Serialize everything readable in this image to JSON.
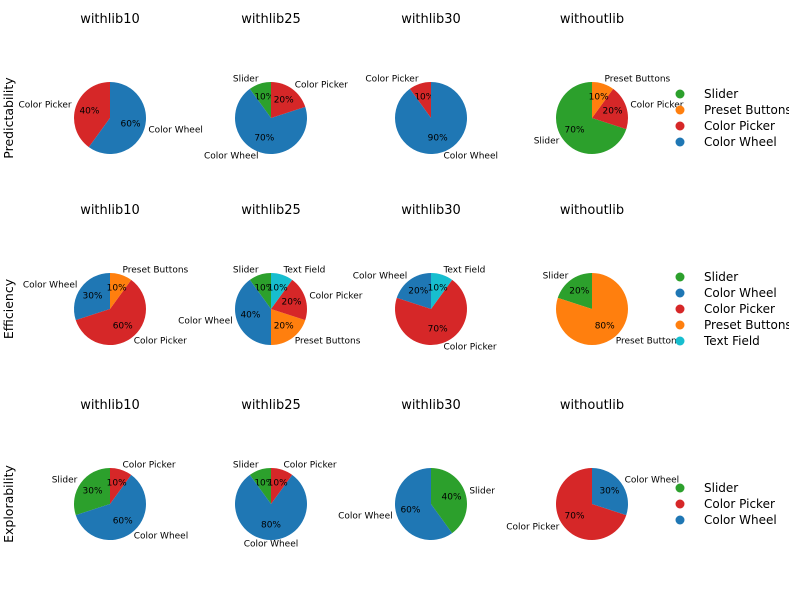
{
  "colors": {
    "Slider": "#2ca02c",
    "Preset Buttons": "#ff7f0e",
    "Color Picker": "#d62728",
    "Color Wheel": "#1f77b4",
    "Text Field": "#17becf"
  },
  "rows": [
    {
      "label": "Predictability",
      "legend": [
        "Slider",
        "Preset Buttons",
        "Color Picker",
        "Color Wheel"
      ]
    },
    {
      "label": "Efficiency",
      "legend": [
        "Slider",
        "Color Wheel",
        "Color Picker",
        "Preset Buttons",
        "Text Field"
      ]
    },
    {
      "label": "Explorability",
      "legend": [
        "Slider",
        "Color Picker",
        "Color Wheel"
      ]
    }
  ],
  "chart_data": [
    {
      "type": "pie",
      "row": 0,
      "col": 0,
      "title": "withlib10",
      "labels": [
        "Color Picker",
        "Color Wheel"
      ],
      "values": [
        40,
        60
      ],
      "pct_labels": [
        "40%",
        "60%"
      ]
    },
    {
      "type": "pie",
      "row": 0,
      "col": 1,
      "title": "withlib25",
      "labels": [
        "Slider",
        "Color Wheel",
        "Color Picker"
      ],
      "values": [
        10,
        70,
        20
      ],
      "pct_labels": [
        "10%",
        "70%",
        "20%"
      ]
    },
    {
      "type": "pie",
      "row": 0,
      "col": 2,
      "title": "withlib30",
      "labels": [
        "Color Picker",
        "Color Wheel"
      ],
      "values": [
        10,
        90
      ],
      "pct_labels": [
        "10%",
        "90%"
      ]
    },
    {
      "type": "pie",
      "row": 0,
      "col": 3,
      "title": "withoutlib",
      "labels": [
        "Slider",
        "Color Picker",
        "Preset Buttons"
      ],
      "values": [
        70,
        20,
        10
      ],
      "pct_labels": [
        "70%",
        "20%",
        "10%"
      ]
    },
    {
      "type": "pie",
      "row": 1,
      "col": 0,
      "title": "withlib10",
      "labels": [
        "Color Wheel",
        "Color Picker",
        "Preset Buttons"
      ],
      "values": [
        30,
        60,
        10
      ],
      "pct_labels": [
        "30%",
        "60%",
        "10%"
      ]
    },
    {
      "type": "pie",
      "row": 1,
      "col": 1,
      "title": "withlib25",
      "labels": [
        "Slider",
        "Color Wheel",
        "Preset Buttons",
        "Color Picker",
        "Text Field"
      ],
      "values": [
        10,
        40,
        20,
        20,
        10
      ],
      "pct_labels": [
        "10%",
        "40%",
        "20%",
        "20%",
        "10%"
      ]
    },
    {
      "type": "pie",
      "row": 1,
      "col": 2,
      "title": "withlib30",
      "labels": [
        "Color Wheel",
        "Color Picker",
        "Text Field"
      ],
      "values": [
        20,
        70,
        10
      ],
      "pct_labels": [
        "20%",
        "70%",
        "10%"
      ]
    },
    {
      "type": "pie",
      "row": 1,
      "col": 3,
      "title": "withoutlib",
      "labels": [
        "Slider",
        "Preset Buttons"
      ],
      "values": [
        20,
        80
      ],
      "pct_labels": [
        "20%",
        "80%"
      ]
    },
    {
      "type": "pie",
      "row": 2,
      "col": 0,
      "title": "withlib10",
      "labels": [
        "Slider",
        "Color Wheel",
        "Color Picker"
      ],
      "values": [
        30,
        60,
        10
      ],
      "pct_labels": [
        "30%",
        "60%",
        "10%"
      ]
    },
    {
      "type": "pie",
      "row": 2,
      "col": 1,
      "title": "withlib25",
      "labels": [
        "Slider",
        "Color Wheel",
        "Color Picker"
      ],
      "values": [
        10,
        80,
        10
      ],
      "pct_labels": [
        "10%",
        "80%",
        "10%"
      ]
    },
    {
      "type": "pie",
      "row": 2,
      "col": 2,
      "title": "withlib30",
      "labels": [
        "Color Wheel",
        "Slider"
      ],
      "values": [
        60,
        40
      ],
      "pct_labels": [
        "60%",
        "40%"
      ]
    },
    {
      "type": "pie",
      "row": 2,
      "col": 3,
      "title": "withoutlib",
      "labels": [
        "Color Picker",
        "Color Wheel"
      ],
      "values": [
        70,
        30
      ],
      "pct_labels": [
        "70%",
        "30%"
      ]
    }
  ]
}
